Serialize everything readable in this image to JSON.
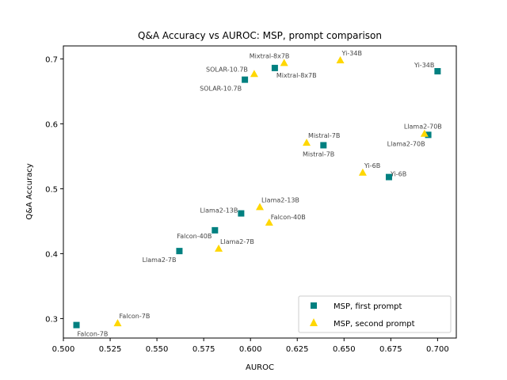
{
  "chart_data": {
    "type": "scatter",
    "title": "Q&A Accuracy vs AUROC: MSP, prompt comparison",
    "xlabel": "AUROC",
    "ylabel": "Q&A Accuracy",
    "xlim": [
      0.5,
      0.71
    ],
    "ylim": [
      0.27,
      0.72
    ],
    "xticks": [
      "0.500",
      "0.525",
      "0.550",
      "0.575",
      "0.600",
      "0.625",
      "0.650",
      "0.675",
      "0.700"
    ],
    "yticks": [
      "0.3",
      "0.4",
      "0.5",
      "0.6",
      "0.7"
    ],
    "grid": false,
    "legend_position": "lower-right",
    "series": [
      {
        "name": "MSP, first prompt",
        "marker": "square",
        "color": "#008080",
        "points": [
          {
            "label": "Falcon-7B",
            "x": 0.507,
            "y": 0.29
          },
          {
            "label": "Llama2-7B",
            "x": 0.562,
            "y": 0.404
          },
          {
            "label": "Falcon-40B",
            "x": 0.581,
            "y": 0.436
          },
          {
            "label": "Llama2-13B",
            "x": 0.595,
            "y": 0.462
          },
          {
            "label": "SOLAR-10.7B",
            "x": 0.597,
            "y": 0.668
          },
          {
            "label": "Mixtral-8x7B",
            "x": 0.613,
            "y": 0.686
          },
          {
            "label": "Mistral-7B",
            "x": 0.639,
            "y": 0.567
          },
          {
            "label": "Yi-6B",
            "x": 0.674,
            "y": 0.518
          },
          {
            "label": "Llama2-70B",
            "x": 0.695,
            "y": 0.583
          },
          {
            "label": "Yi-34B",
            "x": 0.7,
            "y": 0.681
          }
        ]
      },
      {
        "name": "MSP, second prompt",
        "marker": "triangle",
        "color": "#FFD700",
        "points": [
          {
            "label": "Falcon-7B",
            "x": 0.529,
            "y": 0.293
          },
          {
            "label": "Llama2-7B",
            "x": 0.583,
            "y": 0.408
          },
          {
            "label": "Falcon-40B",
            "x": 0.61,
            "y": 0.448
          },
          {
            "label": "Llama2-13B",
            "x": 0.605,
            "y": 0.472
          },
          {
            "label": "SOLAR-10.7B",
            "x": 0.602,
            "y": 0.677
          },
          {
            "label": "Mixtral-8x7B",
            "x": 0.618,
            "y": 0.694
          },
          {
            "label": "Mistral-7B",
            "x": 0.63,
            "y": 0.571
          },
          {
            "label": "Yi-6B",
            "x": 0.66,
            "y": 0.525
          },
          {
            "label": "Llama2-70B",
            "x": 0.693,
            "y": 0.585
          },
          {
            "label": "Yi-34B",
            "x": 0.648,
            "y": 0.698
          }
        ]
      }
    ]
  }
}
